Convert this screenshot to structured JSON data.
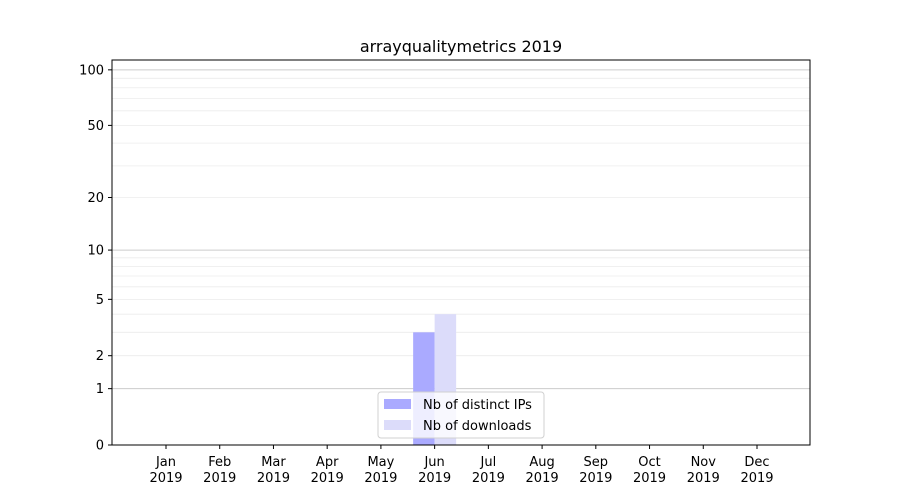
{
  "chart_data": {
    "type": "bar",
    "title": "arrayqualitymetrics 2019",
    "xlabel": "",
    "ylabel": "",
    "yscale": "symlog (log10(1+y))",
    "ylim": [
      0,
      113
    ],
    "yticks": [
      0,
      1,
      2,
      5,
      10,
      20,
      50,
      100
    ],
    "grid": true,
    "categories": [
      "Jan\n2019",
      "Feb\n2019",
      "Mar\n2019",
      "Apr\n2019",
      "May\n2019",
      "Jun\n2019",
      "Jul\n2019",
      "Aug\n2019",
      "Sep\n2019",
      "Oct\n2019",
      "Nov\n2019",
      "Dec\n2019"
    ],
    "series": [
      {
        "name": "Nb of distinct IPs",
        "color": "#aaaaff",
        "values": [
          0,
          0,
          0,
          0,
          0,
          3,
          0,
          0,
          0,
          0,
          0,
          0
        ]
      },
      {
        "name": "Nb of downloads",
        "color": "#dcdcfa",
        "values": [
          0,
          0,
          0,
          0,
          0,
          4,
          0,
          0,
          0,
          0,
          0,
          0
        ]
      }
    ],
    "legend_position": "lower-center"
  }
}
